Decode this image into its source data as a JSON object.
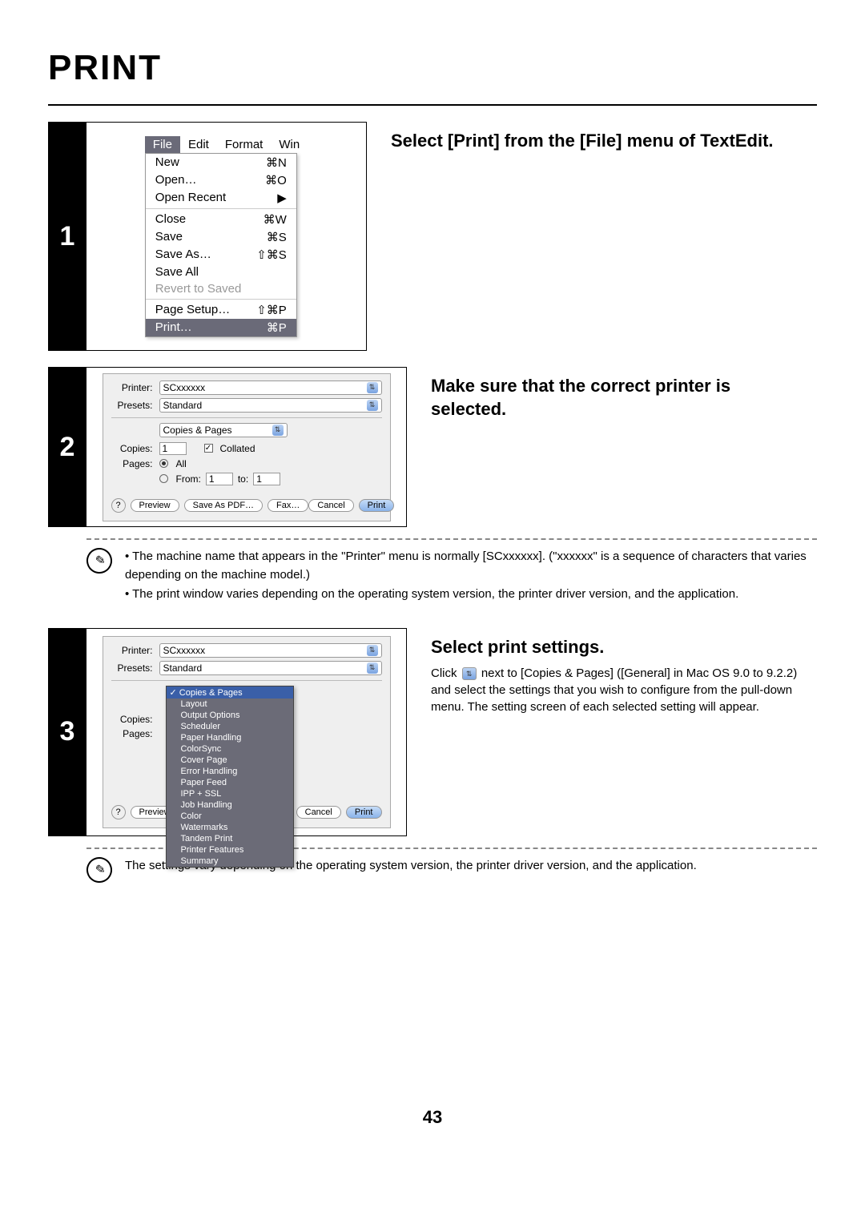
{
  "title": "PRINT",
  "pageNumber": "43",
  "step1": {
    "num": "1",
    "heading": "Select [Print] from the [File] menu of TextEdit.",
    "menubar": [
      "File",
      "Edit",
      "Format",
      "Win"
    ],
    "fileMenu": [
      {
        "label": "New",
        "sc": "⌘N"
      },
      {
        "label": "Open…",
        "sc": "⌘O"
      },
      {
        "label": "Open Recent",
        "sc": "▶"
      },
      {
        "sep": true
      },
      {
        "label": "Close",
        "sc": "⌘W"
      },
      {
        "label": "Save",
        "sc": "⌘S"
      },
      {
        "label": "Save As…",
        "sc": "⇧⌘S"
      },
      {
        "label": "Save All",
        "sc": ""
      },
      {
        "label": "Revert to Saved",
        "sc": "",
        "dim": true
      },
      {
        "sep": true
      },
      {
        "label": "Page Setup…",
        "sc": "⇧⌘P"
      },
      {
        "label": "Print…",
        "sc": "⌘P",
        "hl": true
      }
    ]
  },
  "step2": {
    "num": "2",
    "heading": "Make sure that the correct printer is selected.",
    "dialog": {
      "printerLabel": "Printer:",
      "printerValue": "SCxxxxxx",
      "presetsLabel": "Presets:",
      "presetsValue": "Standard",
      "sectionValue": "Copies & Pages",
      "copiesLabel": "Copies:",
      "copiesValue": "1",
      "collatedLabel": "Collated",
      "pagesLabel": "Pages:",
      "allLabel": "All",
      "fromLabel": "From:",
      "fromValue": "1",
      "toLabel": "to:",
      "toValue": "1",
      "help": "?",
      "preview": "Preview",
      "savePdf": "Save As PDF…",
      "fax": "Fax…",
      "cancel": "Cancel",
      "print": "Print"
    },
    "notes": [
      "• The machine name that appears in the \"Printer\" menu is normally [SCxxxxxx]. (\"xxxxxx\" is a sequence of characters that varies depending on the machine model.)",
      "• The print window varies depending on the operating system version, the printer driver version, and the application."
    ]
  },
  "step3": {
    "num": "3",
    "heading": "Select print settings.",
    "body1": "Click ",
    "body2": " next to [Copies & Pages] ([General] in Mac OS 9.0 to 9.2.2) and select the settings that you wish to configure from the pull-down menu. The setting screen of each selected setting will appear.",
    "dialog": {
      "printerLabel": "Printer:",
      "printerValue": "SCxxxxxx",
      "presetsLabel": "Presets:",
      "presetsValue": "Standard",
      "copiesLabel": "Copies:",
      "pagesLabel": "Pages:",
      "help": "?",
      "preview": "Preview",
      "cancel": "Cancel",
      "print": "Print"
    },
    "dropdown": [
      "Copies & Pages",
      "Layout",
      "Output Options",
      "Scheduler",
      "Paper Handling",
      "ColorSync",
      "Cover Page",
      "Error Handling",
      "Paper Feed",
      "IPP + SSL",
      "Job Handling",
      "Color",
      "Watermarks",
      "Tandem Print",
      "Printer Features",
      "Summary"
    ],
    "note": "The settings vary depending on the operating system version, the printer driver version, and the application."
  }
}
